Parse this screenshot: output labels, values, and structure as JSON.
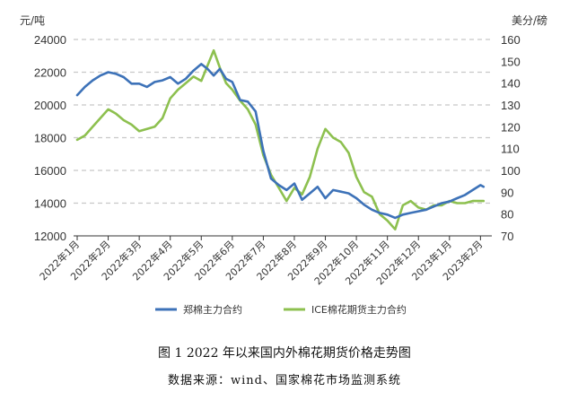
{
  "figure": {
    "caption": "图 1    2022 年以来国内外棉花期货价格走势图",
    "source": "数据来源：wind、国家棉花市场监测系统"
  },
  "chart_data": {
    "type": "line",
    "left_unit": "元/吨",
    "right_unit": "美分/磅",
    "left_ylim": [
      12000,
      24000
    ],
    "left_ticks": [
      "12000",
      "14000",
      "16000",
      "18000",
      "20000",
      "22000",
      "24000"
    ],
    "right_ylim": [
      70,
      160
    ],
    "right_ticks": [
      "70",
      "80",
      "90",
      "100",
      "110",
      "120",
      "130",
      "140",
      "150",
      "160"
    ],
    "x_tick_labels": [
      "2022年1月",
      "2022年2月",
      "2022年3月",
      "2022年4月",
      "2022年5月",
      "2022年6月",
      "2022年7月",
      "2022年8月",
      "2022年9月",
      "2022年10月",
      "2022年11月",
      "2022年12月",
      "2023年1月",
      "2023年2月"
    ],
    "grid": true,
    "legend_position": "bottom",
    "series": [
      {
        "name": "郑棉主力合约",
        "axis": "left",
        "color": "#3d72b8",
        "x": [
          0,
          0.25,
          0.5,
          0.75,
          1,
          1.25,
          1.5,
          1.75,
          2,
          2.25,
          2.5,
          2.75,
          3,
          3.25,
          3.5,
          3.75,
          4,
          4.2,
          4.4,
          4.6,
          4.8,
          5,
          5.25,
          5.5,
          5.75,
          6,
          6.25,
          6.5,
          6.75,
          7,
          7.25,
          7.5,
          7.75,
          8,
          8.25,
          8.5,
          8.75,
          9,
          9.25,
          9.5,
          9.75,
          10,
          10.25,
          10.5,
          10.75,
          11,
          11.25,
          11.5,
          11.75,
          12,
          12.25,
          12.5,
          12.75,
          13,
          13.1
        ],
        "values": [
          20600,
          21100,
          21500,
          21800,
          22000,
          21900,
          21700,
          21300,
          21300,
          21100,
          21400,
          21500,
          21700,
          21300,
          21600,
          22100,
          22500,
          22200,
          21800,
          22200,
          21600,
          21400,
          20300,
          20200,
          19600,
          17200,
          15500,
          15100,
          14800,
          15200,
          14200,
          14600,
          15000,
          14300,
          14800,
          14700,
          14600,
          14300,
          13900,
          13600,
          13400,
          13300,
          13100,
          13300,
          13400,
          13500,
          13600,
          13800,
          14000,
          14100,
          14300,
          14500,
          14800,
          15100,
          15000
        ]
      },
      {
        "name": "ICE棉花期货主力合约",
        "axis": "right",
        "color": "#8dc04f",
        "x": [
          0,
          0.25,
          0.5,
          0.75,
          1,
          1.25,
          1.5,
          1.75,
          2,
          2.25,
          2.5,
          2.75,
          3,
          3.25,
          3.5,
          3.75,
          4,
          4.2,
          4.4,
          4.6,
          4.8,
          5,
          5.25,
          5.5,
          5.75,
          6,
          6.25,
          6.5,
          6.75,
          7,
          7.25,
          7.5,
          7.75,
          8,
          8.25,
          8.5,
          8.75,
          9,
          9.25,
          9.5,
          9.75,
          10,
          10.25,
          10.5,
          10.75,
          11,
          11.25,
          11.5,
          11.75,
          12,
          12.25,
          12.5,
          12.75,
          13,
          13.1
        ],
        "values": [
          114,
          116,
          120,
          124,
          128,
          126,
          123,
          121,
          118,
          119,
          120,
          124,
          133,
          137,
          140,
          143,
          141,
          148,
          155,
          147,
          140,
          137,
          132,
          128,
          121,
          107,
          98,
          92,
          86,
          92,
          89,
          97,
          110,
          119,
          115,
          113,
          108,
          97,
          90,
          88,
          80,
          77,
          73,
          84,
          86,
          83,
          82,
          84,
          84,
          86,
          85,
          85,
          86,
          86,
          86
        ]
      }
    ]
  }
}
